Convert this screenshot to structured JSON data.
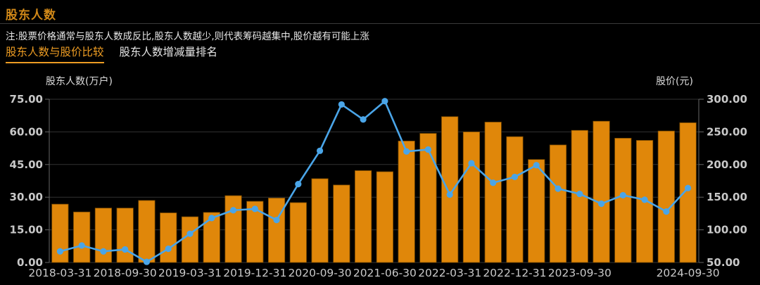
{
  "header": {
    "title": "股东人数",
    "note": "注:股票价格通常与股东人数成反比,股东人数越少,则代表筹码越集中,股价越有可能上涨",
    "tabs": [
      {
        "label": "股东人数与股价比较",
        "active": true
      },
      {
        "label": "股东人数增减量排名",
        "active": false
      }
    ]
  },
  "chart_data": {
    "type": "bar",
    "title": "股东人数与股价比较",
    "left_axis": {
      "label": "股东人数(万户)",
      "min": 0,
      "max": 75,
      "ticks": [
        "75.00",
        "60.00",
        "45.00",
        "30.00",
        "15.00",
        "0.00"
      ]
    },
    "right_axis": {
      "label": "股价(元)",
      "min": 50,
      "max": 300,
      "ticks": [
        "300.00",
        "250.00",
        "200.00",
        "150.00",
        "100.00",
        "50.00"
      ]
    },
    "x_tick_labels": [
      {
        "index": 0,
        "label": "2018-03-31"
      },
      {
        "index": 3,
        "label": "2018-09-30"
      },
      {
        "index": 6,
        "label": "2019-03-31"
      },
      {
        "index": 9,
        "label": "2019-12-31"
      },
      {
        "index": 12,
        "label": "2020-09-30"
      },
      {
        "index": 15,
        "label": "2021-06-30"
      },
      {
        "index": 18,
        "label": "2022-03-31"
      },
      {
        "index": 21,
        "label": "2022-12-31"
      },
      {
        "index": 24,
        "label": "2023-09-30"
      },
      {
        "index": 29,
        "label": "2024-09-30"
      }
    ],
    "series": [
      {
        "name": "股东人数",
        "type": "bar",
        "axis": "left",
        "values": [
          26.8,
          23.2,
          25.0,
          25.0,
          28.5,
          22.8,
          21.0,
          23.0,
          30.7,
          28.1,
          29.6,
          27.5,
          38.5,
          35.6,
          42.2,
          41.7,
          55.8,
          59.3,
          67.0,
          60.0,
          64.5,
          57.8,
          47.3,
          54.0,
          60.7,
          64.9,
          57.1,
          56.1,
          60.4,
          64.2
        ]
      },
      {
        "name": "股价",
        "type": "line",
        "axis": "right",
        "values": [
          67,
          76,
          67,
          70,
          51,
          71,
          94,
          118,
          130,
          132,
          115,
          170,
          221,
          292,
          269,
          297,
          220,
          223,
          154,
          202,
          172,
          181,
          199,
          163,
          155,
          140,
          153,
          146,
          128,
          164
        ]
      }
    ],
    "legend_position": "none",
    "grid": true
  },
  "colors": {
    "bar": "#e0870a",
    "bar_edge": "#7a4a00",
    "line": "#4aa5e8",
    "grid": "#323232",
    "axis": "#666666",
    "tick_text": "#c8c8c8",
    "accent": "#ed9c23",
    "background": "#000000"
  }
}
